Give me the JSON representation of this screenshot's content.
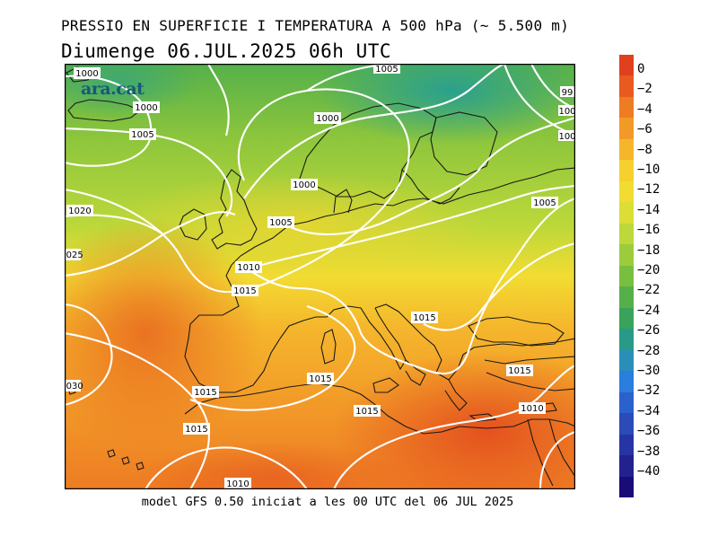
{
  "header": {
    "title_line1": "PRESSIO EN SUPERFICIE I TEMPERATURA A 500 hPa (~ 5.500 m)",
    "title_line2": "Diumenge  06.JUL.2025 06h UTC"
  },
  "footer": {
    "caption": "model GFS 0.50 iniciat a les 00 UTC del 06 JUL 2025"
  },
  "logo": {
    "text": "ara.cat"
  },
  "map": {
    "region": "Europe, North Atlantic and Mediterranean",
    "isobar_labels": [
      "1000",
      "1000",
      "1005",
      "1000",
      "1005",
      "1000",
      "1005",
      "1005",
      "1010",
      "1015",
      "1020",
      "1025",
      "1015",
      "1015",
      "1015",
      "1015",
      "1015",
      "1015",
      "1030",
      "1015",
      "1010",
      "1010",
      "99",
      "100",
      "100"
    ]
  },
  "colorbar": {
    "labels": [
      "0",
      "−2",
      "−4",
      "−6",
      "−8",
      "−10",
      "−12",
      "−14",
      "−16",
      "−18",
      "−20",
      "−22",
      "−24",
      "−26",
      "−28",
      "−30",
      "−32",
      "−34",
      "−36",
      "−38",
      "−40"
    ],
    "colors": [
      "#e0401e",
      "#e85a1f",
      "#ee7c23",
      "#f29a28",
      "#f5b62c",
      "#f6d02e",
      "#f2dc32",
      "#dbde35",
      "#bcd83a",
      "#9ccc3c",
      "#79bf3f",
      "#55b04a",
      "#3aa35b",
      "#2a9a88",
      "#2a8fb8",
      "#2b7dde",
      "#2a61cc",
      "#2a4bb8",
      "#2635a3",
      "#22218e",
      "#1a0c76"
    ]
  }
}
